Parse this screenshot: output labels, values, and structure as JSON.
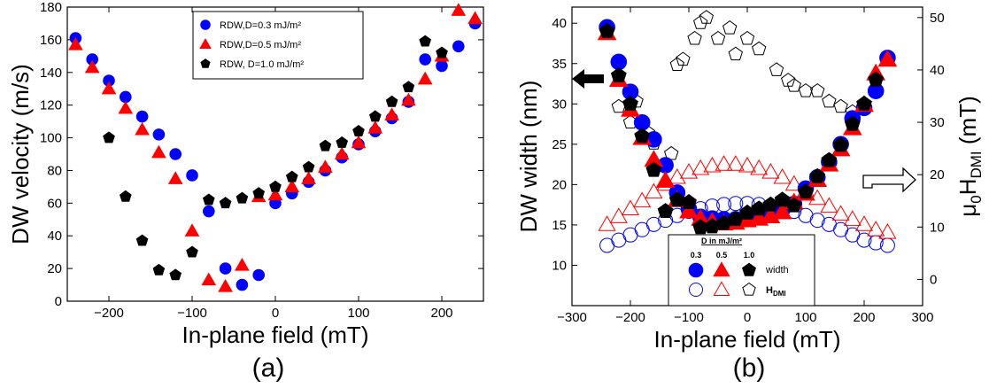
{
  "chart_data": [
    {
      "type": "scatter",
      "panel_label": "(a)",
      "xlabel": "In-plane field (mT)",
      "ylabel": "DW velocity (m/s)",
      "xlim": [
        -250,
        250
      ],
      "ylim": [
        0,
        180
      ],
      "xticks": [
        -200,
        -100,
        0,
        100,
        200
      ],
      "yticks": [
        0,
        20,
        40,
        60,
        80,
        100,
        120,
        140,
        160,
        180
      ],
      "grid": false,
      "legend_position": "top-center",
      "series": [
        {
          "name": "RDW,D=0.3 mJ/m²",
          "marker": "circle",
          "color": "#0000ff",
          "x": [
            -240,
            -220,
            -200,
            -180,
            -160,
            -140,
            -120,
            -100,
            -80,
            -60,
            -40,
            -20,
            0,
            20,
            40,
            60,
            80,
            100,
            120,
            140,
            160,
            180,
            200,
            220,
            240
          ],
          "y": [
            161,
            148,
            135,
            125,
            113,
            102,
            90,
            77,
            55,
            20,
            10,
            16,
            60,
            66,
            73,
            80,
            88,
            96,
            104,
            112,
            122,
            148,
            144,
            156,
            170
          ]
        },
        {
          "name": "RDW,D=0.5 mJ/m²",
          "marker": "triangle",
          "color": "#ff0000",
          "x": [
            -240,
            -220,
            -200,
            -180,
            -160,
            -140,
            -120,
            -100,
            -80,
            -60,
            -40,
            -20,
            0,
            20,
            40,
            60,
            80,
            100,
            120,
            140,
            160,
            180,
            200,
            220,
            240
          ],
          "y": [
            157,
            143,
            130,
            118,
            105,
            91,
            75,
            43,
            13,
            9,
            22,
            64,
            65,
            70,
            75,
            82,
            90,
            97,
            106,
            114,
            123,
            136,
            150,
            178,
            173
          ]
        },
        {
          "name": "RDW, D=1.0 mJ/m²",
          "marker": "pentagon",
          "color": "#000000",
          "x": [
            -200,
            -180,
            -160,
            -140,
            -120,
            -100,
            -80,
            -60,
            -40,
            -20,
            0,
            20,
            40,
            60,
            80,
            100,
            120,
            140,
            160,
            180,
            200
          ],
          "y": [
            100,
            64,
            37,
            19,
            16,
            30,
            62,
            60,
            63,
            66,
            70,
            76,
            82,
            95,
            97,
            104,
            113,
            122,
            131,
            159,
            152
          ]
        }
      ]
    },
    {
      "type": "scatter",
      "panel_label": "(b)",
      "xlabel": "In-plane field (mT)",
      "ylabel": "DW width (nm)",
      "ylabel_right_main": "μ",
      "ylabel_right_sub0": "0",
      "ylabel_right_mid": "H",
      "ylabel_right_sub": "DMI",
      "ylabel_right_unit": " (mT)",
      "xlim": [
        -300,
        300
      ],
      "ylim": [
        5,
        42
      ],
      "ylim_right": [
        -5,
        52
      ],
      "xticks": [
        -300,
        -200,
        -100,
        0,
        100,
        200,
        300
      ],
      "yticks": [
        10,
        15,
        20,
        25,
        30,
        35,
        40
      ],
      "yticks_right": [
        0,
        10,
        20,
        30,
        40,
        50
      ],
      "grid": false,
      "legend_position": "bottom-center",
      "legend": {
        "header": "D in mJ/m²",
        "columns": [
          "0.3",
          "0.5",
          "1.0"
        ],
        "row_width": "width",
        "row_hdmi_main": "H",
        "row_hdmi_sub": "DMI"
      },
      "series": [
        {
          "name": "width D=0.3",
          "axis": "left",
          "marker": "circle",
          "filled": true,
          "color": "#0000ff",
          "x": [
            -240,
            -220,
            -200,
            -180,
            -160,
            -140,
            -120,
            -100,
            -80,
            -60,
            -40,
            -20,
            0,
            20,
            40,
            60,
            80,
            100,
            120,
            140,
            160,
            180,
            200,
            220,
            240
          ],
          "y": [
            39.5,
            35.2,
            31.5,
            27.7,
            25.6,
            22.4,
            19.0,
            17.0,
            16.0,
            15.8,
            15.7,
            15.7,
            16.2,
            16.4,
            16.6,
            16.9,
            17.6,
            19.5,
            20.9,
            22.8,
            25.0,
            28.2,
            29.5,
            31.6,
            35.7
          ]
        },
        {
          "name": "width D=0.5",
          "axis": "left",
          "marker": "triangle",
          "filled": true,
          "color": "#ff0000",
          "x": [
            -240,
            -220,
            -200,
            -180,
            -160,
            -140,
            -120,
            -100,
            -80,
            -60,
            -40,
            -20,
            0,
            20,
            40,
            60,
            80,
            100,
            120,
            140,
            160,
            180,
            200,
            220,
            240
          ],
          "y": [
            38.8,
            33.0,
            29.3,
            25.8,
            23.1,
            20.5,
            18.1,
            16.7,
            15.8,
            15.4,
            15.2,
            15.3,
            15.6,
            15.8,
            16.1,
            16.6,
            17.8,
            18.9,
            20.6,
            22.5,
            24.4,
            27.0,
            29.9,
            33.8,
            35.5
          ]
        },
        {
          "name": "width D=1.0",
          "axis": "left",
          "marker": "pentagon",
          "filled": true,
          "color": "#000000",
          "x": [
            -240,
            -220,
            -200,
            -180,
            -160,
            -140,
            -120,
            -100,
            -80,
            -60,
            -40,
            -20,
            0,
            20,
            40,
            60,
            80,
            100,
            120,
            140,
            160,
            180,
            200,
            220
          ],
          "y": [
            39.0,
            33.5,
            30.0,
            26.0,
            21.8,
            16.7,
            18.1,
            17.8,
            14.7,
            14.8,
            15.2,
            15.7,
            16.5,
            17.0,
            17.5,
            18.1,
            17.4,
            19.1,
            21.0,
            23.0,
            24.9,
            27.5,
            30.0,
            33.0
          ]
        },
        {
          "name": "H_DMI D=0.3",
          "axis": "right",
          "marker": "circle",
          "filled": false,
          "color": "#0000ff",
          "x": [
            -240,
            -220,
            -200,
            -180,
            -160,
            -140,
            -120,
            -100,
            -80,
            -60,
            -40,
            -20,
            0,
            20,
            40,
            60,
            80,
            100,
            120,
            140,
            160,
            180,
            200,
            220,
            240
          ],
          "y": [
            6.5,
            7.5,
            8.5,
            9.5,
            10.5,
            11.3,
            12.2,
            13.0,
            13.5,
            14.0,
            14.3,
            14.5,
            14.5,
            14.3,
            14.0,
            13.5,
            13.0,
            12.2,
            11.3,
            10.5,
            9.5,
            8.5,
            7.5,
            7.0,
            6.5
          ]
        },
        {
          "name": "H_DMI D=0.5",
          "axis": "right",
          "marker": "triangle",
          "filled": false,
          "color": "#ff0000",
          "x": [
            -240,
            -220,
            -200,
            -180,
            -160,
            -140,
            -120,
            -100,
            -80,
            -60,
            -40,
            -20,
            0,
            20,
            40,
            60,
            80,
            100,
            120,
            140,
            160,
            180,
            200,
            220,
            240
          ],
          "y": [
            10.5,
            12.0,
            13.5,
            15.0,
            16.7,
            18.2,
            19.5,
            20.5,
            21.2,
            21.7,
            22.0,
            22.0,
            21.7,
            21.2,
            20.5,
            19.5,
            18.2,
            17.0,
            15.5,
            14.0,
            12.5,
            11.5,
            10.5,
            9.5,
            9.0
          ]
        },
        {
          "name": "H_DMI D=1.0",
          "axis": "right",
          "marker": "pentagon",
          "filled": false,
          "color": "#000000",
          "x": [
            -220,
            -200,
            -190,
            -170,
            -160,
            -130,
            -120,
            -110,
            -90,
            -80,
            -70,
            -50,
            -30,
            -20,
            0,
            20,
            50,
            70,
            80,
            100,
            120,
            140,
            160,
            180
          ],
          "y": [
            33.0,
            30.0,
            34.0,
            28.0,
            26.0,
            24.0,
            41.0,
            42.0,
            46.0,
            49.0,
            50.0,
            46.0,
            48.0,
            43.0,
            46.0,
            44.0,
            40.0,
            38.0,
            37.0,
            36.0,
            36.0,
            34.0,
            33.0,
            32.0
          ]
        }
      ]
    }
  ]
}
